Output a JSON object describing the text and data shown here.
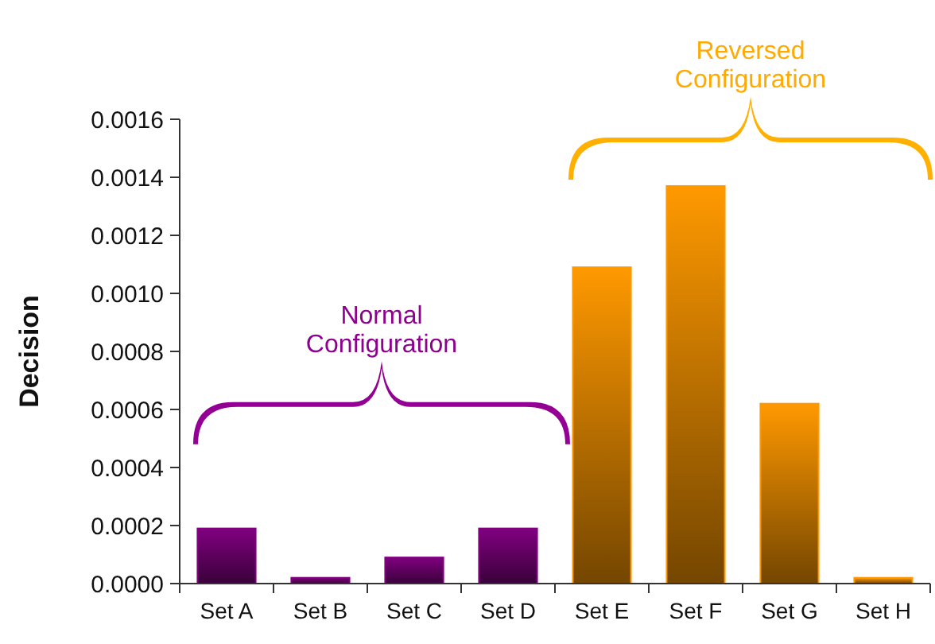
{
  "chart_data": {
    "type": "bar",
    "ylabel": "Decision",
    "categories": [
      "Set A",
      "Set B",
      "Set C",
      "Set D",
      "Set E",
      "Set F",
      "Set G",
      "Set H"
    ],
    "values": [
      0.00019,
      2e-05,
      9e-05,
      0.00019,
      0.00109,
      0.00137,
      0.00062,
      2e-05
    ],
    "colors": [
      "#800080",
      "#800080",
      "#800080",
      "#800080",
      "#ff9900",
      "#ff9900",
      "#ff9900",
      "#ff9900"
    ],
    "ylim": [
      0,
      0.0016
    ],
    "yticks": [
      {
        "value": 0,
        "label": "0.0000"
      },
      {
        "value": 0.0002,
        "label": "0.0002"
      },
      {
        "value": 0.0004,
        "label": "0.0004"
      },
      {
        "value": 0.0006,
        "label": "0.0006"
      },
      {
        "value": 0.0008,
        "label": "0.0008"
      },
      {
        "value": 0.001,
        "label": "0.0010"
      },
      {
        "value": 0.0012,
        "label": "0.0012"
      },
      {
        "value": 0.0014,
        "label": "0.0014"
      },
      {
        "value": 0.0016,
        "label": "0.0016"
      }
    ],
    "annotations": [
      "Normal Configuration",
      "Reversed Configuration"
    ]
  }
}
